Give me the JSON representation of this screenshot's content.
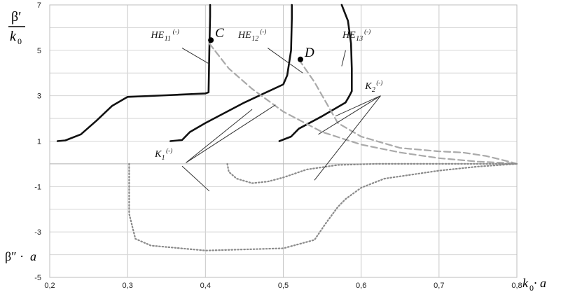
{
  "chart_data": {
    "type": "line",
    "xlim": [
      0.2,
      0.8
    ],
    "ylim": [
      -5,
      7
    ],
    "x_ticks": [
      "0,2",
      "0,3",
      "0,4",
      "0,5",
      "0,6",
      "0,7",
      "0,8"
    ],
    "y_ticks": [
      "-5",
      "-3",
      "-1",
      "1",
      "3",
      "5",
      "7"
    ],
    "grid": true,
    "ylabel_top": {
      "num": "β′",
      "den": "k",
      "den_sub": "0"
    },
    "ylabel_bottom": {
      "main": "β″ · ",
      "var": "a"
    },
    "xlabel": {
      "main": "k",
      "sub": "0",
      "rest": " · a"
    },
    "series": [
      {
        "name": "HE11(-) β′",
        "style": "solid-black",
        "x": [
          0.21,
          0.22,
          0.24,
          0.26,
          0.28,
          0.3,
          0.35,
          0.4,
          0.404,
          0.405,
          0.406,
          0.406
        ],
        "y": [
          1.0,
          1.03,
          1.3,
          1.9,
          2.55,
          2.95,
          3.02,
          3.1,
          3.15,
          5.0,
          6.5,
          7.0
        ]
      },
      {
        "name": "HE12(-) β′",
        "style": "solid-black",
        "x": [
          0.355,
          0.37,
          0.38,
          0.4,
          0.45,
          0.5,
          0.505,
          0.51,
          0.511,
          0.511
        ],
        "y": [
          1.0,
          1.05,
          1.4,
          1.8,
          2.7,
          3.5,
          3.9,
          5.0,
          6.4,
          7.0
        ]
      },
      {
        "name": "HE13(-) β′",
        "style": "solid-black",
        "x": [
          0.495,
          0.51,
          0.52,
          0.55,
          0.58,
          0.585,
          0.588,
          0.588,
          0.587,
          0.583,
          0.575
        ],
        "y": [
          1.0,
          1.2,
          1.55,
          2.1,
          2.7,
          3.0,
          3.2,
          4.2,
          5.3,
          6.3,
          7.0
        ]
      },
      {
        "name": "HE11(-) β″·a",
        "style": "dashed-gray",
        "x": [
          0.405,
          0.43,
          0.46,
          0.5,
          0.55,
          0.6,
          0.65,
          0.7,
          0.75,
          0.79,
          0.8
        ],
        "y": [
          5.3,
          4.2,
          3.3,
          2.3,
          1.4,
          0.85,
          0.5,
          0.25,
          0.1,
          0.03,
          0.0
        ]
      },
      {
        "name": "HE12(-) β″·a",
        "style": "dashed-gray",
        "x": [
          0.52,
          0.54,
          0.56,
          0.57,
          0.6,
          0.65,
          0.7,
          0.73,
          0.76,
          0.79,
          0.8
        ],
        "y": [
          4.6,
          3.6,
          2.4,
          1.8,
          1.2,
          0.7,
          0.55,
          0.5,
          0.35,
          0.1,
          0.0
        ]
      },
      {
        "name": "K1(-)",
        "style": "dotted-gray",
        "x": [
          0.302,
          0.302,
          0.31,
          0.33,
          0.4,
          0.5,
          0.54,
          0.555,
          0.57,
          0.58,
          0.6,
          0.63,
          0.7,
          0.75,
          0.8
        ],
        "y": [
          0.0,
          -2.2,
          -3.3,
          -3.6,
          -3.82,
          -3.72,
          -3.35,
          -2.6,
          -1.9,
          -1.55,
          -1.05,
          -0.65,
          -0.3,
          -0.12,
          0.0
        ]
      },
      {
        "name": "K2(-)",
        "style": "dotted-gray",
        "x": [
          0.428,
          0.43,
          0.44,
          0.46,
          0.48,
          0.5,
          0.53,
          0.57,
          0.62,
          0.7,
          0.8
        ],
        "y": [
          0.0,
          -0.35,
          -0.65,
          -0.85,
          -0.78,
          -0.6,
          -0.25,
          -0.05,
          0.0,
          0.0,
          0.0
        ]
      }
    ],
    "points": [
      {
        "label": "C",
        "x": 0.407,
        "y": 5.45
      },
      {
        "label": "D",
        "x": 0.522,
        "y": 4.6
      }
    ],
    "annotations": [
      {
        "label": "HE",
        "sub": "11",
        "sup": "(-)",
        "text_x": 0.33,
        "text_y": 5.55,
        "leader": [
          [
            0.37,
            5.1
          ],
          [
            0.405,
            4.4
          ]
        ]
      },
      {
        "label": "HE",
        "sub": "12",
        "sup": "(-)",
        "text_x": 0.442,
        "text_y": 5.55,
        "leader": [
          [
            0.48,
            5.1
          ],
          [
            0.525,
            4.0
          ]
        ]
      },
      {
        "label": "HE",
        "sub": "13",
        "sup": "(-)",
        "text_x": 0.576,
        "text_y": 5.55,
        "leader": [
          [
            0.58,
            5.0
          ],
          [
            0.575,
            4.3
          ]
        ]
      },
      {
        "label": "K",
        "sub": "1",
        "sup": "(-)",
        "text_x": 0.335,
        "text_y": 0.3,
        "leader": [
          [
            0.375,
            0.05
          ],
          [
            0.46,
            2.4
          ]
        ],
        "leader2": [
          [
            0.375,
            0.05
          ],
          [
            0.49,
            2.6
          ]
        ],
        "leader3": [
          [
            0.37,
            -0.1
          ],
          [
            0.405,
            -1.2
          ]
        ]
      },
      {
        "label": "K",
        "sub": "2",
        "sup": "(-)",
        "text_x": 0.605,
        "text_y": 3.3,
        "leader": [
          [
            0.625,
            3.0
          ],
          [
            0.567,
            2.1
          ]
        ],
        "leader2": [
          [
            0.625,
            3.0
          ],
          [
            0.545,
            1.3
          ]
        ],
        "leader3": [
          [
            0.625,
            3.0
          ],
          [
            0.54,
            -0.72
          ]
        ]
      }
    ]
  }
}
